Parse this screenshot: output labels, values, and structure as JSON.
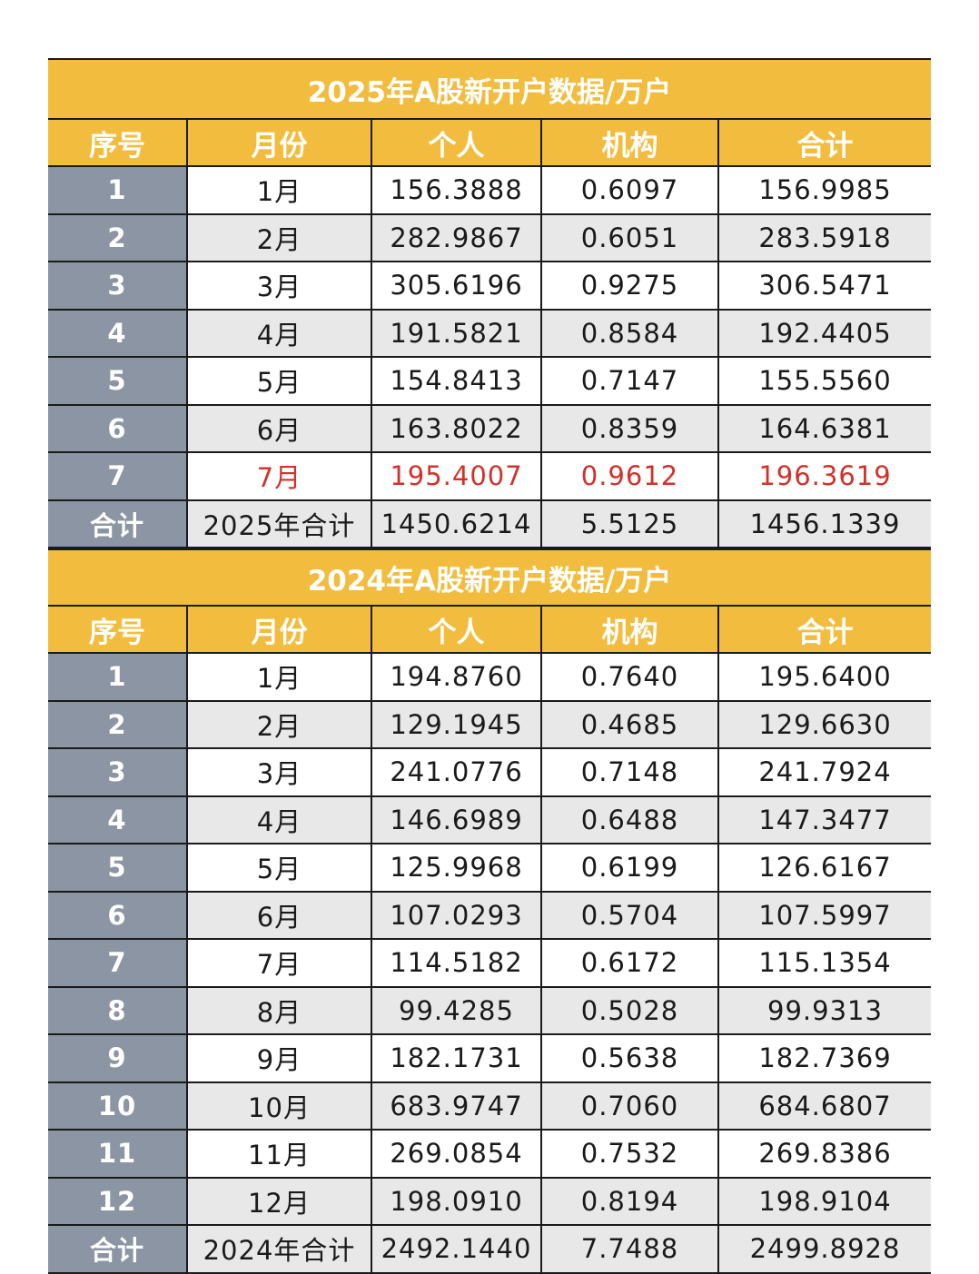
{
  "headers": [
    "序号",
    "月份",
    "个人",
    "机构",
    "合计"
  ],
  "table_2025": {
    "title": "2025年A股新开户数据/万户",
    "rows": [
      {
        "idx": "1",
        "month": "1月",
        "individual": "156.3888",
        "institution": "0.6097",
        "total": "156.9985"
      },
      {
        "idx": "2",
        "month": "2月",
        "individual": "282.9867",
        "institution": "0.6051",
        "total": "283.5918"
      },
      {
        "idx": "3",
        "month": "3月",
        "individual": "305.6196",
        "institution": "0.9275",
        "total": "306.5471"
      },
      {
        "idx": "4",
        "month": "4月",
        "individual": "191.5821",
        "institution": "0.8584",
        "total": "192.4405"
      },
      {
        "idx": "5",
        "month": "5月",
        "individual": "154.8413",
        "institution": "0.7147",
        "total": "155.5560"
      },
      {
        "idx": "6",
        "month": "6月",
        "individual": "163.8022",
        "institution": "0.8359",
        "total": "164.6381"
      },
      {
        "idx": "7",
        "month": "7月",
        "individual": "195.4007",
        "institution": "0.9612",
        "total": "196.3619",
        "highlight": true
      }
    ],
    "total_row": {
      "idx": "合计",
      "month": "2025年合计",
      "individual": "1450.6214",
      "institution": "5.5125",
      "total": "1456.1339"
    }
  },
  "table_2024": {
    "title": "2024年A股新开户数据/万户",
    "rows": [
      {
        "idx": "1",
        "month": "1月",
        "individual": "194.8760",
        "institution": "0.7640",
        "total": "195.6400"
      },
      {
        "idx": "2",
        "month": "2月",
        "individual": "129.1945",
        "institution": "0.4685",
        "total": "129.6630"
      },
      {
        "idx": "3",
        "month": "3月",
        "individual": "241.0776",
        "institution": "0.7148",
        "total": "241.7924"
      },
      {
        "idx": "4",
        "month": "4月",
        "individual": "146.6989",
        "institution": "0.6488",
        "total": "147.3477"
      },
      {
        "idx": "5",
        "month": "5月",
        "individual": "125.9968",
        "institution": "0.6199",
        "total": "126.6167"
      },
      {
        "idx": "6",
        "month": "6月",
        "individual": "107.0293",
        "institution": "0.5704",
        "total": "107.5997"
      },
      {
        "idx": "7",
        "month": "7月",
        "individual": "114.5182",
        "institution": "0.6172",
        "total": "115.1354"
      },
      {
        "idx": "8",
        "month": "8月",
        "individual": "99.4285",
        "institution": "0.5028",
        "total": "99.9313"
      },
      {
        "idx": "9",
        "month": "9月",
        "individual": "182.1731",
        "institution": "0.5638",
        "total": "182.7369"
      },
      {
        "idx": "10",
        "month": "10月",
        "individual": "683.9747",
        "institution": "0.7060",
        "total": "684.6807"
      },
      {
        "idx": "11",
        "month": "11月",
        "individual": "269.0854",
        "institution": "0.7532",
        "total": "269.8386"
      },
      {
        "idx": "12",
        "month": "12月",
        "individual": "198.0910",
        "institution": "0.8194",
        "total": "198.9104"
      }
    ],
    "total_row": {
      "idx": "合计",
      "month": "2024年合计",
      "individual": "2492.1440",
      "institution": "7.7488",
      "total": "2499.8928"
    }
  },
  "colors": {
    "header_bg": "#f2bd3e",
    "index_bg": "#8c95a3",
    "stripe_bg": "#e8e8e8",
    "highlight_text": "#d2312a"
  }
}
